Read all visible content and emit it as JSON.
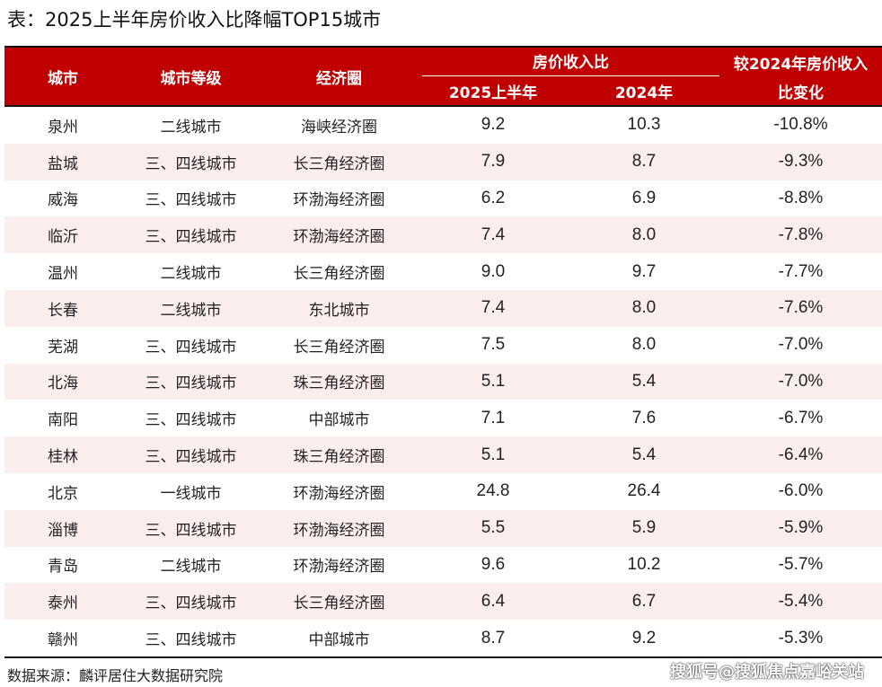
{
  "title": "表：2025上半年房价收入比降幅TOP15城市",
  "headers": {
    "city": "城市",
    "tier": "城市等级",
    "circle": "经济圈",
    "ratio_group": "房价收入比",
    "h2025": "2025上半年",
    "h2024": "2024年",
    "change_line1": "较2024年房价收入",
    "change_line2": "比变化"
  },
  "rows": [
    {
      "city": "泉州",
      "tier": "二线城市",
      "circle": "海峡经济圈",
      "v2025": "9.2",
      "v2024": "10.3",
      "change": "-10.8%"
    },
    {
      "city": "盐城",
      "tier": "三、四线城市",
      "circle": "长三角经济圈",
      "v2025": "7.9",
      "v2024": "8.7",
      "change": "-9.3%"
    },
    {
      "city": "威海",
      "tier": "三、四线城市",
      "circle": "环渤海经济圈",
      "v2025": "6.2",
      "v2024": "6.9",
      "change": "-8.8%"
    },
    {
      "city": "临沂",
      "tier": "三、四线城市",
      "circle": "环渤海经济圈",
      "v2025": "7.4",
      "v2024": "8.0",
      "change": "-7.8%"
    },
    {
      "city": "温州",
      "tier": "二线城市",
      "circle": "长三角经济圈",
      "v2025": "9.0",
      "v2024": "9.7",
      "change": "-7.7%"
    },
    {
      "city": "长春",
      "tier": "二线城市",
      "circle": "东北城市",
      "v2025": "7.4",
      "v2024": "8.0",
      "change": "-7.6%"
    },
    {
      "city": "芜湖",
      "tier": "三、四线城市",
      "circle": "长三角经济圈",
      "v2025": "7.5",
      "v2024": "8.0",
      "change": "-7.0%"
    },
    {
      "city": "北海",
      "tier": "三、四线城市",
      "circle": "珠三角经济圈",
      "v2025": "5.1",
      "v2024": "5.4",
      "change": "-7.0%"
    },
    {
      "city": "南阳",
      "tier": "三、四线城市",
      "circle": "中部城市",
      "v2025": "7.1",
      "v2024": "7.6",
      "change": "-6.7%"
    },
    {
      "city": "桂林",
      "tier": "三、四线城市",
      "circle": "珠三角经济圈",
      "v2025": "5.1",
      "v2024": "5.4",
      "change": "-6.4%"
    },
    {
      "city": "北京",
      "tier": "一线城市",
      "circle": "环渤海经济圈",
      "v2025": "24.8",
      "v2024": "26.4",
      "change": "-6.0%"
    },
    {
      "city": "淄博",
      "tier": "三、四线城市",
      "circle": "环渤海经济圈",
      "v2025": "5.5",
      "v2024": "5.9",
      "change": "-5.9%"
    },
    {
      "city": "青岛",
      "tier": "二线城市",
      "circle": "环渤海经济圈",
      "v2025": "9.6",
      "v2024": "10.2",
      "change": "-5.7%"
    },
    {
      "city": "泰州",
      "tier": "三、四线城市",
      "circle": "长三角经济圈",
      "v2025": "6.4",
      "v2024": "6.7",
      "change": "-5.4%"
    },
    {
      "city": "赣州",
      "tier": "三、四线城市",
      "circle": "中部城市",
      "v2025": "8.7",
      "v2024": "9.2",
      "change": "-5.3%"
    }
  ],
  "source": "数据来源：麟评居住大数据研究院",
  "watermark": "搜狐号@搜狐焦点嘉峪关站",
  "colors": {
    "header_bg": "#c00000",
    "stripe": "#fdeeee"
  }
}
